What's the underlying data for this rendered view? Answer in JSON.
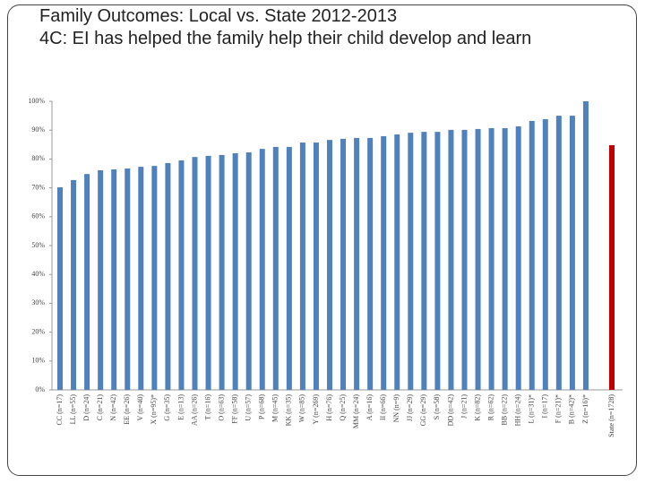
{
  "chart_data": {
    "type": "bar",
    "title": "Family Outcomes: Local vs. State 2012-2013",
    "subtitle": "4C: EI has helped the family help their child develop and learn",
    "categories": [
      "CC (n=17)",
      "LL (n=55)",
      "D (n=24)",
      "C (n=21)",
      "N (n=42)",
      "EE (n=26)",
      "V (n=40)",
      "X (n=95)*",
      "G (n=35)",
      "E (n=13)",
      "AA (n=26)",
      "T (n=16)",
      "O (n=63)",
      "FF (n=58)",
      "U (n=57)",
      "P (n=68)",
      "M (n=45)",
      "KK (n=35)",
      "W (n=85)",
      "Y (n=269)",
      "H (n=76)",
      "Q (n=25)",
      "MM (n=24)",
      "A (n=16)",
      "II (n=66)",
      "NN (n=9)",
      "JJ (n=29)",
      "GG (n=29)",
      "S (n=58)",
      "DD (n=42)",
      "J (n=21)",
      "K (n=82)",
      "R (n=62)",
      "BB (n=22)",
      "HH (n=24)",
      "L (n=31)*",
      "I (n=17)",
      "F (n=21)*",
      "B (n=42)*",
      "Z (n=16)*",
      "State (n=1728)"
    ],
    "values": [
      70.2,
      72.7,
      74.8,
      76.1,
      76.4,
      76.7,
      77.3,
      77.6,
      78.6,
      79.5,
      80.7,
      81.1,
      81.4,
      82.0,
      82.3,
      83.5,
      84.2,
      84.2,
      85.7,
      85.7,
      86.6,
      87.0,
      87.3,
      87.3,
      87.9,
      88.5,
      89.1,
      89.4,
      89.4,
      90.1,
      90.1,
      90.4,
      90.7,
      90.7,
      91.3,
      93.2,
      93.8,
      95.0,
      95.0,
      100,
      84.8
    ],
    "colors": [
      "#4f81bd",
      "#4f81bd",
      "#4f81bd",
      "#4f81bd",
      "#4f81bd",
      "#4f81bd",
      "#4f81bd",
      "#4f81bd",
      "#4f81bd",
      "#4f81bd",
      "#4f81bd",
      "#4f81bd",
      "#4f81bd",
      "#4f81bd",
      "#4f81bd",
      "#4f81bd",
      "#4f81bd",
      "#4f81bd",
      "#4f81bd",
      "#4f81bd",
      "#4f81bd",
      "#4f81bd",
      "#4f81bd",
      "#4f81bd",
      "#4f81bd",
      "#4f81bd",
      "#4f81bd",
      "#4f81bd",
      "#4f81bd",
      "#4f81bd",
      "#4f81bd",
      "#4f81bd",
      "#4f81bd",
      "#4f81bd",
      "#4f81bd",
      "#4f81bd",
      "#4f81bd",
      "#4f81bd",
      "#4f81bd",
      "#4f81bd",
      "#c00000"
    ],
    "ylim": [
      0,
      100
    ],
    "yticks": [
      {
        "value": 0,
        "label": "0%"
      },
      {
        "value": 10,
        "label": "10%"
      },
      {
        "value": 20,
        "label": "20%"
      },
      {
        "value": 30,
        "label": "30%"
      },
      {
        "value": 40,
        "label": "40%"
      },
      {
        "value": 50,
        "label": "50%"
      },
      {
        "value": 60,
        "label": "60%"
      },
      {
        "value": 70,
        "label": "70%"
      },
      {
        "value": 80,
        "label": "80%"
      },
      {
        "value": 90,
        "label": "90%"
      },
      {
        "value": 100,
        "label": "100%"
      }
    ]
  }
}
